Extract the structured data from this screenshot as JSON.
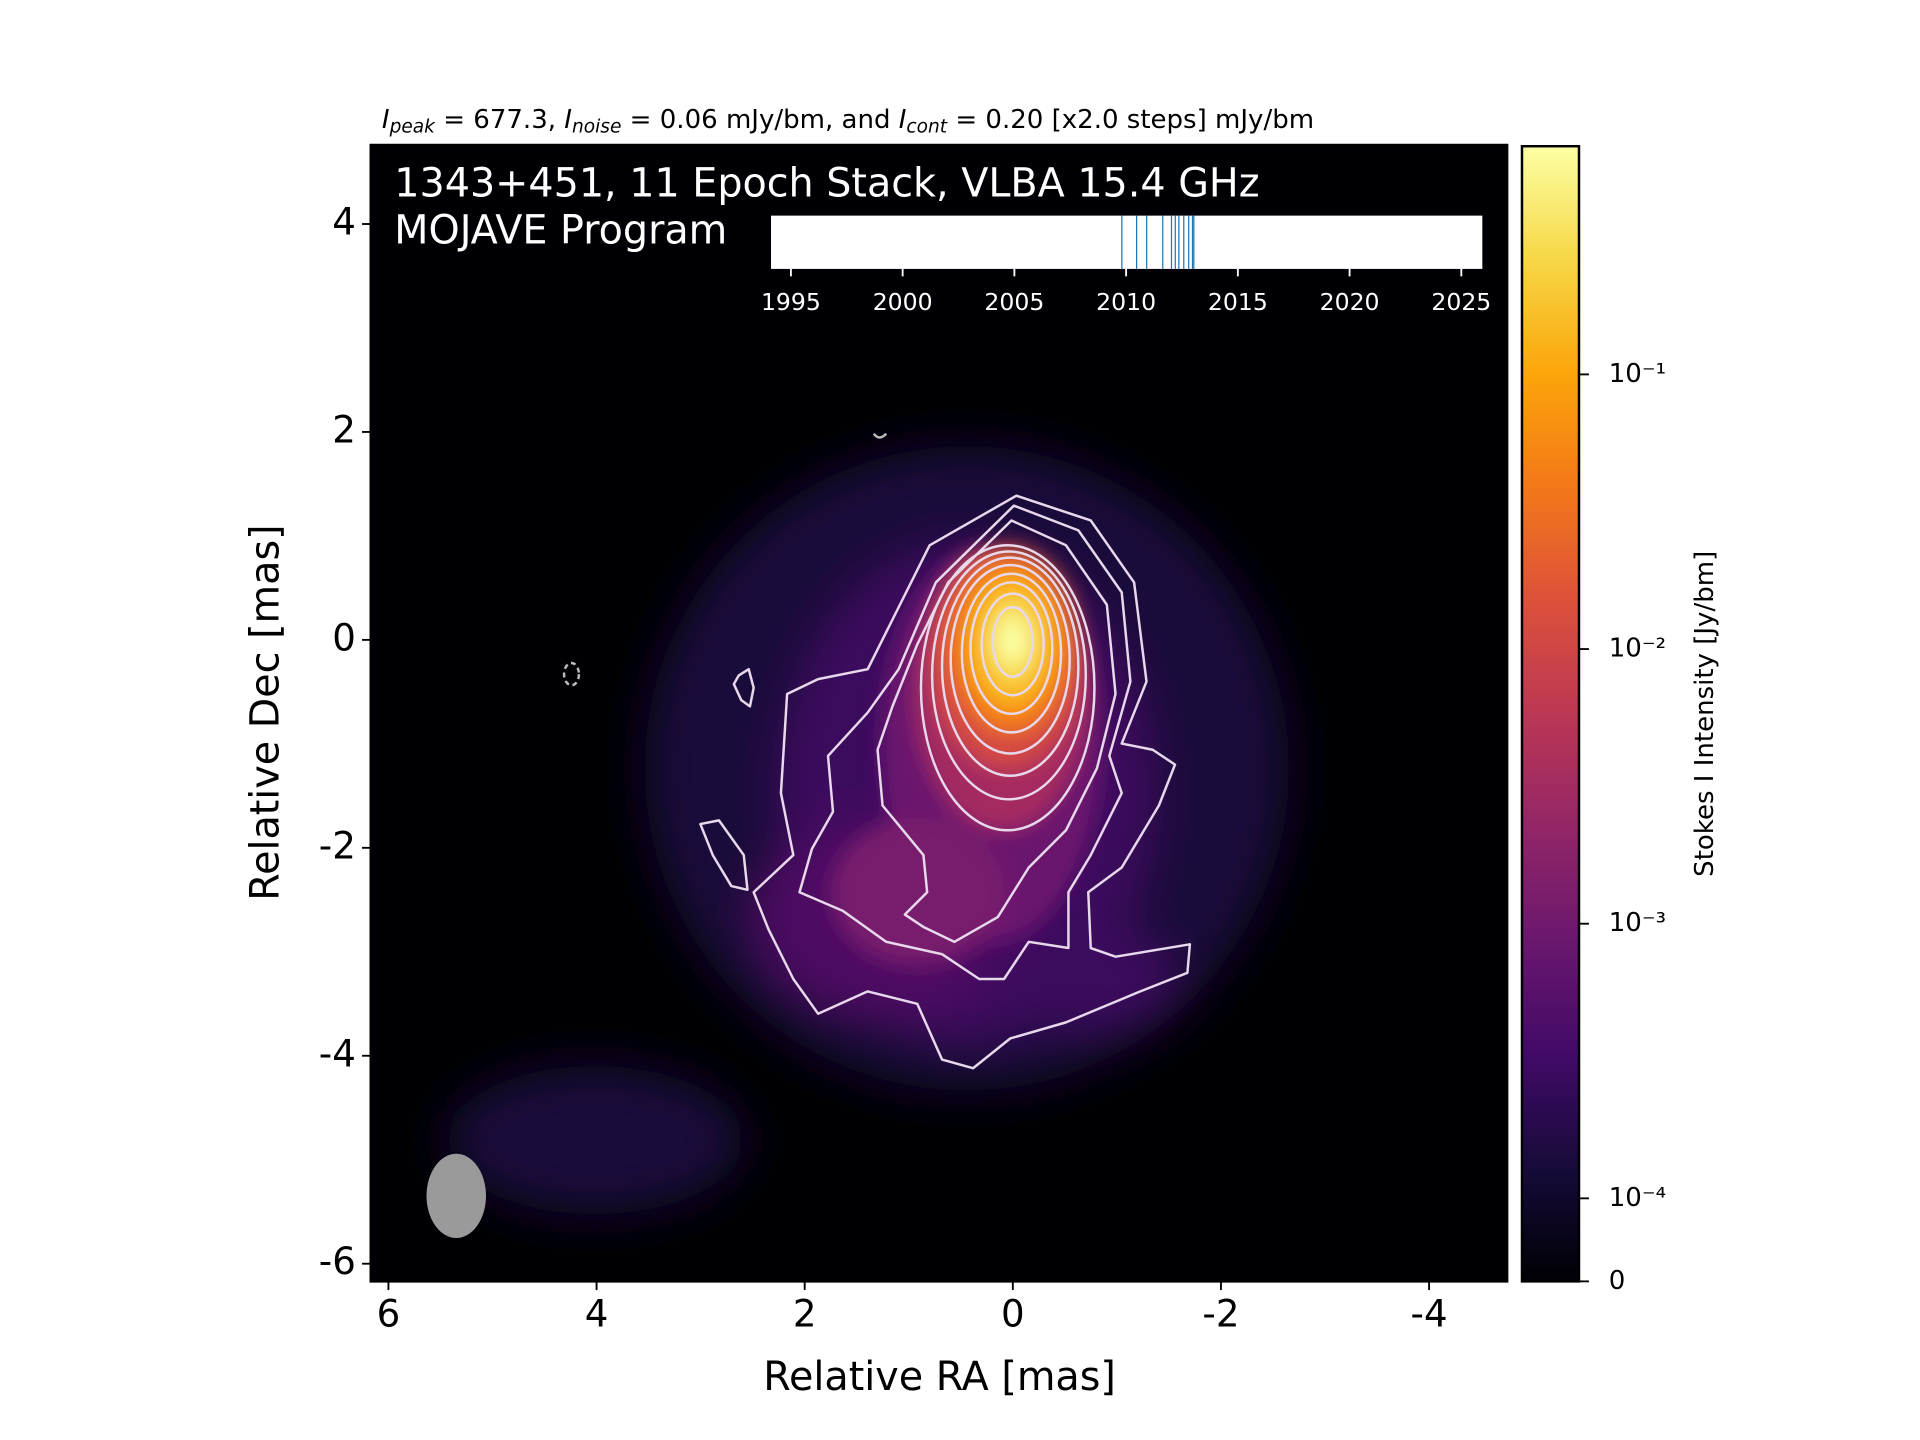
{
  "chart_data": {
    "type": "image",
    "title": [
      "1343+451, 11 Epoch Stack, VLBA 15.4 GHz",
      "MOJAVE Program"
    ],
    "subtitle_parts": [
      "I",
      "peak",
      " = 677.3, ",
      "I",
      "noise",
      " = 0.06 mJy/bm, and ",
      "I",
      "cont",
      " = 0.20 [x2.0 steps] mJy/bm"
    ],
    "xlabel": "Relative RA [mas]",
    "ylabel": "Relative Dec [mas]",
    "xlim": [
      6.17,
      -4.75
    ],
    "ylim": [
      -6.17,
      4.76
    ],
    "xticks": [
      6,
      4,
      2,
      0,
      -2,
      -4
    ],
    "yticks": [
      -6,
      -4,
      -2,
      0,
      2,
      4
    ],
    "colorbar": {
      "label": "Stokes I Intensity [Jy/bm]",
      "scale": "symlog",
      "colormap": "inferno",
      "lim": [
        0,
        0.6773
      ],
      "ticks": [
        0,
        {
          "value": 0.0001,
          "label": "10⁻⁴"
        },
        {
          "value": 0.001,
          "label": "10⁻³"
        },
        {
          "value": 0.01,
          "label": "10⁻²"
        },
        {
          "value": 0.1,
          "label": "10⁻¹"
        }
      ]
    },
    "inset": {
      "type": "rug",
      "color": "#1f77b4",
      "xlim": [
        1994.11,
        2025.94
      ],
      "xticks": [
        1995,
        2000,
        2005,
        2010,
        2015,
        2020,
        2025
      ],
      "x": [
        2009.81,
        2010.47,
        2010.92,
        2011.64,
        2012.03,
        2012.2,
        2012.36,
        2012.58,
        2012.8,
        2012.97,
        2013.03
      ]
    }
  }
}
